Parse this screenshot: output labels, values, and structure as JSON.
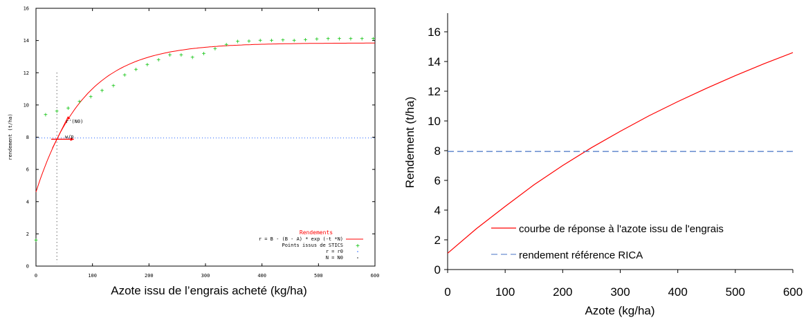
{
  "chart_data": [
    {
      "type": "scatter",
      "title": "Rendements",
      "xlabel": "Azote issu de l’engrais acheté (kg/ha)",
      "ylabel": "rendement (t/ha)",
      "xlim": [
        0,
        600
      ],
      "ylim": [
        0,
        16
      ],
      "x_ticks": [
        "0",
        "100",
        "200",
        "300",
        "400",
        "500",
        "600"
      ],
      "y_ticks": [
        "0",
        "2",
        "4",
        "6",
        "8",
        "10",
        "12",
        "14",
        "16"
      ],
      "grid": false,
      "legend_position": "bottom-right",
      "colors": {
        "curve": "#ff0000",
        "points": "#00c000",
        "refline": "#2060ff",
        "tangent": "#ff0000",
        "vline": "#202020"
      },
      "curve": {
        "name": "r = B - (B - A) * exp (-t *N)",
        "B": 13.85,
        "A": 4.6,
        "t": 0.0118
      },
      "series": [
        {
          "name": "Points issus de STICS",
          "x": [
            0,
            17,
            37,
            57,
            77,
            97,
            117,
            137,
            157,
            177,
            197,
            217,
            237,
            257,
            277,
            297,
            317,
            337,
            357,
            377,
            397,
            417,
            437,
            457,
            477,
            497,
            517,
            537,
            557,
            577,
            597
          ],
          "y": [
            1.6,
            9.4,
            9.6,
            9.8,
            10.2,
            10.5,
            10.9,
            11.2,
            11.85,
            12.2,
            12.5,
            12.8,
            13.1,
            13.1,
            12.95,
            13.2,
            13.5,
            13.75,
            13.95,
            13.97,
            14.0,
            14.0,
            14.02,
            14.0,
            14.05,
            14.1,
            14.12,
            14.12,
            14.12,
            14.12,
            14.12
          ]
        }
      ],
      "hlines": [
        {
          "name": "r = r0",
          "y": 7.95
        }
      ],
      "vlines": [
        {
          "name": "N = N0",
          "x": 37
        }
      ],
      "annotations": {
        "tangent_label": "r'(N0)",
        "ratio_label": "w/p",
        "tangent_x0": 37
      }
    },
    {
      "type": "line",
      "xlabel": "Azote (kg/ha)",
      "ylabel": "Rendement (t/ha)",
      "xlim": [
        0,
        600
      ],
      "ylim": [
        0,
        16
      ],
      "x_ticks": [
        "0",
        "100",
        "200",
        "300",
        "400",
        "500",
        "600"
      ],
      "y_ticks": [
        "0",
        "2",
        "4",
        "6",
        "8",
        "10",
        "12",
        "14",
        "16"
      ],
      "grid": false,
      "legend_position": "bottom-right",
      "series": [
        {
          "name": "courbe de réponse à l'azote issu de l'engrais",
          "style": "solid",
          "color": "#ff0000",
          "x": [
            0,
            50,
            100,
            150,
            200,
            250,
            300,
            350,
            400,
            450,
            500,
            550,
            600
          ],
          "y": [
            1.1,
            2.75,
            4.25,
            5.7,
            7.0,
            8.2,
            9.3,
            10.35,
            11.3,
            12.2,
            13.05,
            13.85,
            14.6
          ]
        },
        {
          "name": "rendement référence RICA",
          "style": "dashed",
          "color": "#4472c4",
          "x": [
            0,
            600
          ],
          "y": [
            7.95,
            7.95
          ]
        }
      ]
    }
  ]
}
